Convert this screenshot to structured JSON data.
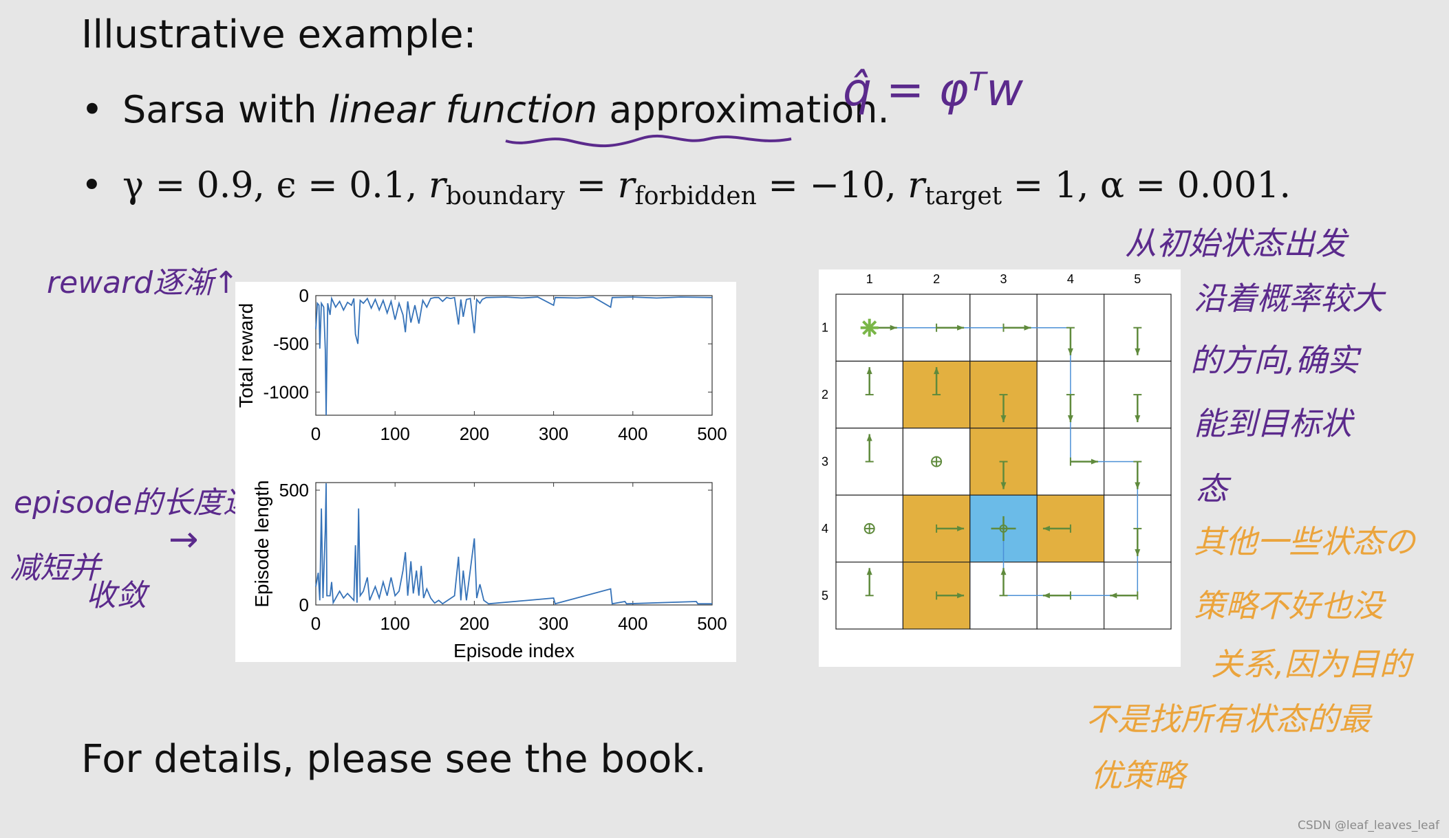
{
  "slide": {
    "title": "Illustrative example:",
    "bullet1": {
      "pre": "Sarsa with ",
      "italic": "linear function",
      "post": " approximation."
    },
    "bullet2": {
      "gamma": "γ = 0.9,",
      "epsilon": "ϵ = 0.1,",
      "r1": "r",
      "r1_sub": "boundary",
      "eq1": " = ",
      "r2": "r",
      "r2_sub": "forbidden",
      "eq2": " = −10,",
      "r3": "r",
      "r3_sub": "target",
      "eq3": " = 1,",
      "alpha": "α = 0.001."
    },
    "footer": "For details, please see the book.",
    "watermark": "CSDN @leaf_leaves_leaf"
  },
  "annotations": {
    "formula": "q̂ = φᵀw",
    "reward_note": "reward逐渐↑",
    "episode_note_1": "episode的长度逐渐",
    "episode_note_2": "减短并",
    "episode_note_3": "收敛",
    "arrow": "→",
    "right_purple": [
      "从初始状态出发",
      "沿着概率较大",
      "的方向,确实",
      "能到目标状",
      "态"
    ],
    "right_orange": [
      "其他一些状态の",
      "策略不好也没",
      "关系,因为目的",
      "不是找所有状态的最",
      "优策略"
    ],
    "colors": {
      "purple": "#5b2a8c",
      "orange": "#eba43c"
    }
  },
  "chart_data": [
    {
      "type": "line",
      "xlabel": "",
      "ylabel": "Total reward",
      "xlim": [
        0,
        500
      ],
      "ylim": [
        -1240,
        0
      ],
      "xticks": [
        "0",
        "100",
        "200",
        "300",
        "400",
        "500"
      ],
      "yticks": [
        "0",
        "-500",
        "-1000"
      ],
      "color": "#3572b8",
      "points": [
        [
          0,
          -350
        ],
        [
          2,
          -80
        ],
        [
          4,
          -100
        ],
        [
          5,
          -550
        ],
        [
          7,
          -80
        ],
        [
          10,
          -120
        ],
        [
          12,
          -560
        ],
        [
          13,
          -1240
        ],
        [
          15,
          -80
        ],
        [
          18,
          -200
        ],
        [
          20,
          -30
        ],
        [
          25,
          -120
        ],
        [
          30,
          -60
        ],
        [
          35,
          -150
        ],
        [
          40,
          -70
        ],
        [
          45,
          -100
        ],
        [
          48,
          -30
        ],
        [
          50,
          -400
        ],
        [
          53,
          -500
        ],
        [
          56,
          -50
        ],
        [
          60,
          -80
        ],
        [
          65,
          -30
        ],
        [
          70,
          -130
        ],
        [
          75,
          -40
        ],
        [
          80,
          -150
        ],
        [
          85,
          -50
        ],
        [
          90,
          -180
        ],
        [
          95,
          -60
        ],
        [
          100,
          -250
        ],
        [
          105,
          -80
        ],
        [
          110,
          -200
        ],
        [
          113,
          -380
        ],
        [
          116,
          -60
        ],
        [
          120,
          -280
        ],
        [
          125,
          -100
        ],
        [
          130,
          -290
        ],
        [
          135,
          -50
        ],
        [
          140,
          -120
        ],
        [
          145,
          -30
        ],
        [
          150,
          -20
        ],
        [
          155,
          -20
        ],
        [
          160,
          -60
        ],
        [
          165,
          -20
        ],
        [
          170,
          -30
        ],
        [
          175,
          -20
        ],
        [
          180,
          -300
        ],
        [
          183,
          -40
        ],
        [
          186,
          -220
        ],
        [
          190,
          -40
        ],
        [
          195,
          -30
        ],
        [
          200,
          -390
        ],
        [
          203,
          -40
        ],
        [
          207,
          -80
        ],
        [
          210,
          -40
        ],
        [
          215,
          -20
        ],
        [
          240,
          -15
        ],
        [
          260,
          -25
        ],
        [
          280,
          -15
        ],
        [
          300,
          -100
        ],
        [
          302,
          -20
        ],
        [
          330,
          -25
        ],
        [
          350,
          -15
        ],
        [
          372,
          -120
        ],
        [
          374,
          -20
        ],
        [
          400,
          -15
        ],
        [
          430,
          -25
        ],
        [
          460,
          -15
        ],
        [
          500,
          -20
        ]
      ]
    },
    {
      "type": "line",
      "xlabel": "Episode index",
      "ylabel": "Episode length",
      "xlim": [
        0,
        500
      ],
      "ylim": [
        0,
        533
      ],
      "xticks": [
        "0",
        "100",
        "200",
        "300",
        "400",
        "500"
      ],
      "yticks": [
        "500",
        "0"
      ],
      "color": "#3572b8",
      "points": [
        [
          0,
          80
        ],
        [
          3,
          140
        ],
        [
          5,
          20
        ],
        [
          7,
          420
        ],
        [
          9,
          30
        ],
        [
          12,
          330
        ],
        [
          13,
          530
        ],
        [
          14,
          40
        ],
        [
          18,
          40
        ],
        [
          20,
          100
        ],
        [
          22,
          10
        ],
        [
          30,
          60
        ],
        [
          35,
          30
        ],
        [
          40,
          50
        ],
        [
          48,
          20
        ],
        [
          50,
          260
        ],
        [
          52,
          10
        ],
        [
          54,
          420
        ],
        [
          56,
          40
        ],
        [
          60,
          60
        ],
        [
          65,
          120
        ],
        [
          68,
          20
        ],
        [
          75,
          80
        ],
        [
          80,
          30
        ],
        [
          85,
          100
        ],
        [
          90,
          40
        ],
        [
          95,
          120
        ],
        [
          100,
          40
        ],
        [
          105,
          60
        ],
        [
          110,
          150
        ],
        [
          113,
          230
        ],
        [
          116,
          40
        ],
        [
          120,
          190
        ],
        [
          123,
          50
        ],
        [
          127,
          150
        ],
        [
          130,
          40
        ],
        [
          133,
          170
        ],
        [
          136,
          30
        ],
        [
          140,
          70
        ],
        [
          145,
          30
        ],
        [
          150,
          8
        ],
        [
          155,
          20
        ],
        [
          160,
          5
        ],
        [
          175,
          40
        ],
        [
          180,
          210
        ],
        [
          183,
          20
        ],
        [
          186,
          150
        ],
        [
          190,
          20
        ],
        [
          200,
          290
        ],
        [
          203,
          30
        ],
        [
          207,
          90
        ],
        [
          212,
          20
        ],
        [
          218,
          5
        ],
        [
          300,
          30
        ],
        [
          302,
          5
        ],
        [
          372,
          70
        ],
        [
          374,
          5
        ],
        [
          390,
          15
        ],
        [
          392,
          5
        ],
        [
          480,
          15
        ],
        [
          482,
          5
        ],
        [
          500,
          5
        ]
      ]
    }
  ],
  "grid": {
    "col_labels": [
      "1",
      "2",
      "3",
      "4",
      "5"
    ],
    "row_labels": [
      "1",
      "2",
      "3",
      "4",
      "5"
    ],
    "policy": [
      [
        "right",
        "right",
        "right",
        "down",
        "down"
      ],
      [
        "up",
        "up",
        "down",
        "down",
        "down"
      ],
      [
        "up",
        "stay",
        "down",
        "right",
        "down"
      ],
      [
        "stay",
        "right",
        "target",
        "left",
        "down"
      ],
      [
        "up",
        "right",
        "up",
        "left",
        "left"
      ]
    ],
    "start": [
      1,
      1
    ],
    "target": [
      4,
      3
    ],
    "forbidden": [
      [
        2,
        2
      ],
      [
        2,
        3
      ],
      [
        3,
        3
      ],
      [
        4,
        2
      ],
      [
        4,
        4
      ],
      [
        5,
        2
      ]
    ],
    "path": [
      [
        1,
        1
      ],
      [
        1,
        2
      ],
      [
        1,
        3
      ],
      [
        1,
        4
      ],
      [
        2,
        4
      ],
      [
        3,
        4
      ],
      [
        3,
        5
      ],
      [
        4,
        5
      ],
      [
        5,
        5
      ],
      [
        5,
        4
      ],
      [
        5,
        3
      ],
      [
        4,
        3
      ]
    ],
    "colors": {
      "forbidden": "#e3b040",
      "target": "#6bbbe8",
      "arrow": "#5f8a3c",
      "start": "#7ab648",
      "path": "#4a8fd6"
    }
  }
}
